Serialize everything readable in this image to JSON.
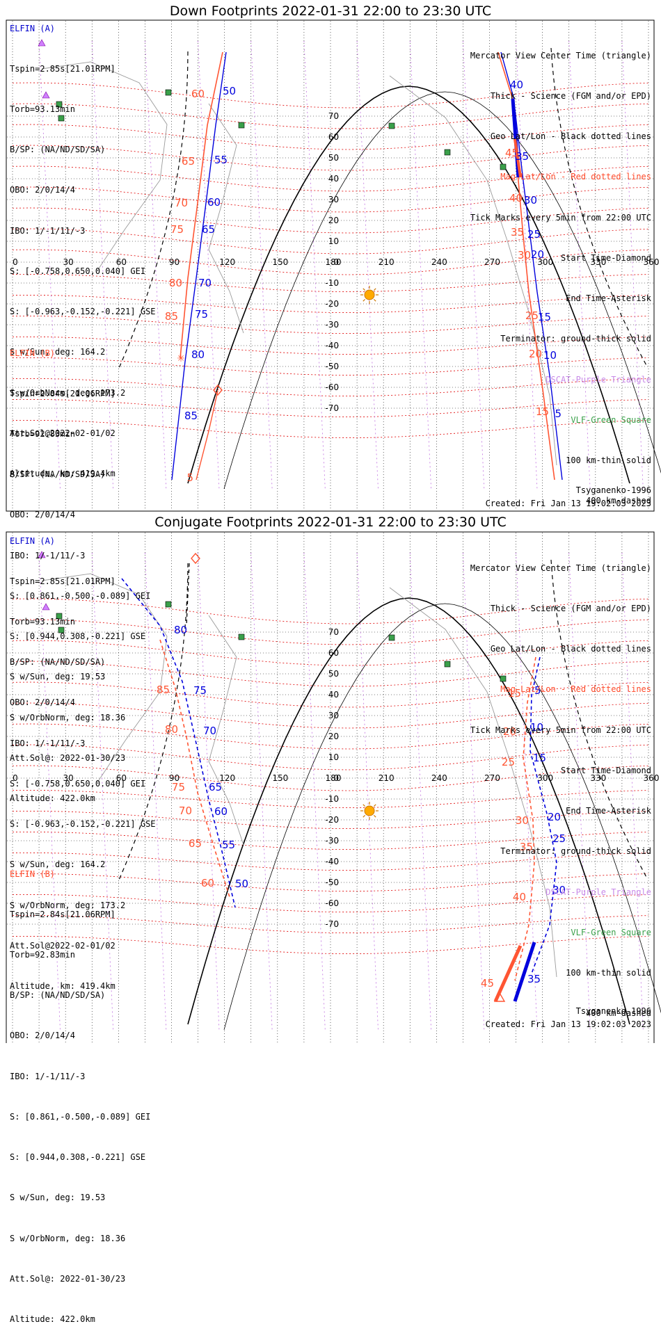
{
  "panels": [
    {
      "id": "down",
      "title": "Down Footprints 2022-01-31 22:00 to 23:30 UTC",
      "elfin_a_label": "ELFIN (A)",
      "elfin_a": [
        "Tspin=2.85s[21.01RPM]",
        "Torb=93.13min",
        "B/SP: (NA/ND/SD/SA)",
        "OBO: 2/0/14/4",
        "IBO: 1/-1/11/-3",
        "S: [-0.758,0.650,0.040] GEI",
        "S: [-0.963,-0.152,-0.221] GSE",
        "S w/Sun, deg: 164.2",
        "S w/OrbNorm, deg: 173.2",
        "Att.Sol@2022-02-01/02",
        "Altitude, km: 419.4km"
      ],
      "elfin_b_label": "ELFIN (B)",
      "elfin_b": [
        "Tspin=2.84s[21.06RPM]",
        "Torb=92.83min",
        "B/SP: (NA/ND/SD/SA)",
        "OBO: 2/0/14/4",
        "IBO: 1/-1/11/-3",
        "S: [0.861,-0.500,-0.089] GEI",
        "S: [0.944,0.308,-0.221] GSE",
        "S w/Sun, deg: 19.53",
        "S w/OrbNorm, deg: 18.36",
        "Att.Sol@: 2022-01-30/23",
        "Altitude: 422.0km"
      ],
      "legend": [
        {
          "text": "Mercator View Center Time (triangle)",
          "color": "black"
        },
        {
          "text": "Thick - Science (FGM and/or EPD)",
          "color": "black"
        },
        {
          "text": "Geo Lat/Lon - Black dotted lines",
          "color": "black"
        },
        {
          "text": "Mag Lat/Lon - Red dotted lines",
          "color": "red"
        },
        {
          "text": "Tick Marks every 5min from 22:00 UTC",
          "color": "black"
        },
        {
          "text": "Start Time-Diamond",
          "color": "black"
        },
        {
          "text": "End Time-Asterisk",
          "color": "black"
        },
        {
          "text": "Terminator: ground-thick solid",
          "color": "black"
        },
        {
          "text": "DSCAT-Purple Triangle",
          "color": "purple"
        },
        {
          "text": "VLF-Green Square",
          "color": "green"
        },
        {
          "text": "100 km-thin solid",
          "color": "black"
        },
        {
          "text": "400 km-dashed",
          "color": "black"
        }
      ],
      "model": "Tsyganenko-1996",
      "created": "Created: Fri Jan 13 19:02:03 2023"
    },
    {
      "id": "conj",
      "title": "Conjugate Footprints 2022-01-31 22:00 to 23:30 UTC",
      "elfin_a_label": "ELFIN (A)",
      "elfin_a": [
        "Tspin=2.85s[21.01RPM]",
        "Torb=93.13min",
        "B/SP: (NA/ND/SD/SA)",
        "OBO: 2/0/14/4",
        "IBO: 1/-1/11/-3",
        "S: [-0.758,0.650,0.040] GEI",
        "S: [-0.963,-0.152,-0.221] GSE",
        "S w/Sun, deg: 164.2",
        "S w/OrbNorm, deg: 173.2",
        "Att.Sol@2022-02-01/02",
        "Altitude, km: 419.4km"
      ],
      "elfin_b_label": "ELFIN (B)",
      "elfin_b": [
        "Tspin=2.84s[21.06RPM]",
        "Torb=92.83min",
        "B/SP: (NA/ND/SD/SA)",
        "OBO: 2/0/14/4",
        "IBO: 1/-1/11/-3",
        "S: [0.861,-0.500,-0.089] GEI",
        "S: [0.944,0.308,-0.221] GSE",
        "S w/Sun, deg: 19.53",
        "S w/OrbNorm, deg: 18.36",
        "Att.Sol@: 2022-01-30/23",
        "Altitude: 422.0km"
      ],
      "legend": [
        {
          "text": "Mercator View Center Time (triangle)",
          "color": "black"
        },
        {
          "text": "Thick - Science (FGM and/or EPD)",
          "color": "black"
        },
        {
          "text": "Geo Lat/Lon - Black dotted lines",
          "color": "black"
        },
        {
          "text": "Mag Lat/Lon - Red dotted lines",
          "color": "red"
        },
        {
          "text": "Tick Marks every 5min from 22:00 UTC",
          "color": "black"
        },
        {
          "text": "Start Time-Diamond",
          "color": "black"
        },
        {
          "text": "End Time-Asterisk",
          "color": "black"
        },
        {
          "text": "Terminator: ground-thick solid",
          "color": "black"
        },
        {
          "text": "DSCAT-Purple Triangle",
          "color": "purple"
        },
        {
          "text": "VLF-Green Square",
          "color": "green"
        },
        {
          "text": "100 km-thin solid",
          "color": "black"
        },
        {
          "text": "400 km-dashed",
          "color": "black"
        }
      ],
      "model": "Tsyganenko-1996",
      "created": "Created: Fri Jan 13 19:02:03 2023"
    }
  ],
  "lon_ticks": [
    "0",
    "30",
    "60",
    "90",
    "120",
    "150",
    "180",
    "210",
    "240",
    "270",
    "300",
    "330",
    "360"
  ],
  "lat_ticks": [
    "70",
    "60",
    "50",
    "40",
    "30",
    "20",
    "10",
    "0",
    "-10",
    "-20",
    "-30",
    "-40",
    "-50",
    "-60",
    "-70"
  ],
  "colors": {
    "elfin_a": "#0000dd",
    "elfin_b": "#ff5533",
    "mag_grid": "#e00000",
    "geo_grid": "#000000",
    "vlf": "#3aa04a",
    "dscat": "#d080ff",
    "sun": "#ffaa00"
  },
  "down_tracks": {
    "a_west": [
      "50",
      "55",
      "60",
      "65",
      "70",
      "75",
      "80",
      "85"
    ],
    "b_west": [
      "60",
      "65",
      "70",
      "75",
      "80",
      "85",
      "5"
    ],
    "a_east": [
      "40",
      "35",
      "30",
      "25",
      "20",
      "15",
      "10",
      "5"
    ],
    "b_east": [
      "45",
      "40",
      "35",
      "30",
      "25",
      "20",
      "15"
    ]
  },
  "conj_tracks": {
    "a_west": [
      "80",
      "75",
      "70",
      "65",
      "60",
      "55",
      "50"
    ],
    "b_west": [
      "85",
      "80",
      "75",
      "70",
      "65",
      "60"
    ],
    "a_east": [
      "5",
      "10",
      "15",
      "20",
      "25",
      "30",
      "35"
    ],
    "b_east": [
      "15",
      "20",
      "25",
      "30",
      "35",
      "40",
      "45"
    ]
  },
  "sun_glyph": "☀"
}
